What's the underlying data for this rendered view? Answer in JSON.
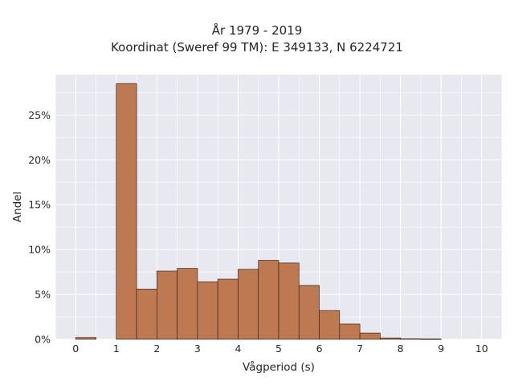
{
  "chart_data": {
    "type": "bar",
    "title_lines": [
      "År 1979 - 2019",
      "Koordinat (Sweref 99 TM): E 349133, N 6224721"
    ],
    "xlabel": "Vågperiod (s)",
    "ylabel": "Andel",
    "xlim": [
      -0.5,
      10.5
    ],
    "ylim": [
      0,
      29.5
    ],
    "x_ticks": [
      0,
      1,
      2,
      3,
      4,
      5,
      6,
      7,
      8,
      9,
      10
    ],
    "y_ticks": [
      0,
      5,
      10,
      15,
      20,
      25
    ],
    "y_tick_labels": [
      "0%",
      "5%",
      "10%",
      "15%",
      "20%",
      "25%"
    ],
    "bin_width": 0.5,
    "bins": [
      {
        "x0": 0.0,
        "value": 0.2
      },
      {
        "x0": 1.0,
        "value": 28.5
      },
      {
        "x0": 1.5,
        "value": 5.6
      },
      {
        "x0": 2.0,
        "value": 7.6
      },
      {
        "x0": 2.5,
        "value": 7.9
      },
      {
        "x0": 3.0,
        "value": 6.4
      },
      {
        "x0": 3.5,
        "value": 6.7
      },
      {
        "x0": 4.0,
        "value": 7.8
      },
      {
        "x0": 4.5,
        "value": 8.8
      },
      {
        "x0": 5.0,
        "value": 8.5
      },
      {
        "x0": 5.5,
        "value": 6.0
      },
      {
        "x0": 6.0,
        "value": 3.2
      },
      {
        "x0": 6.5,
        "value": 1.7
      },
      {
        "x0": 7.0,
        "value": 0.7
      },
      {
        "x0": 7.5,
        "value": 0.15
      },
      {
        "x0": 8.0,
        "value": 0.05
      },
      {
        "x0": 8.5,
        "value": 0.03
      }
    ],
    "grid": true,
    "colors": {
      "bar_fill": "#bd7a52",
      "bar_edge": "#3b2418",
      "plot_bg": "#e8e8f0",
      "grid": "#ffffff"
    }
  }
}
